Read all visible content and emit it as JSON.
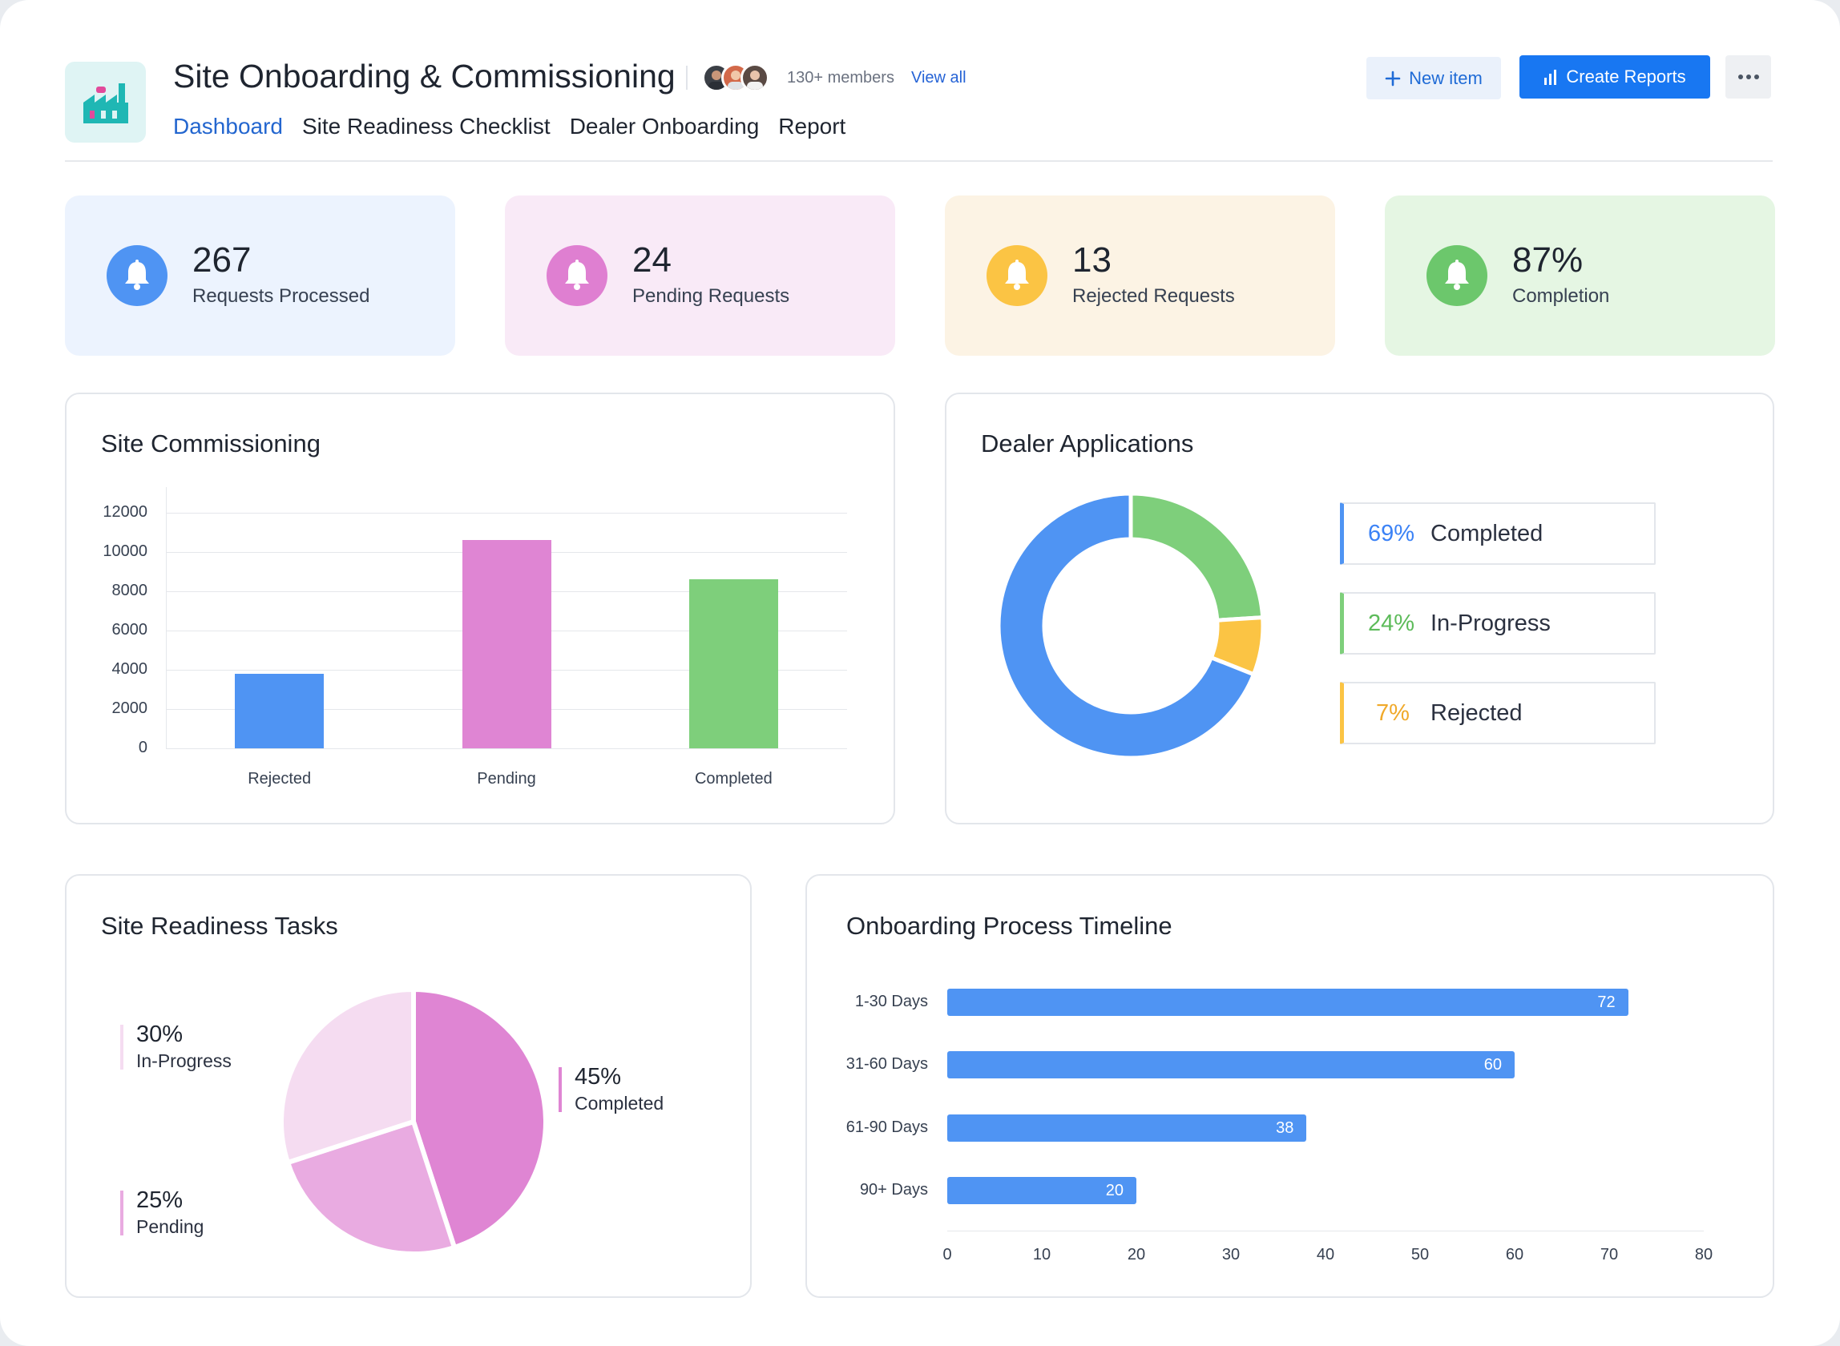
{
  "header": {
    "title": "Site Onboarding & Commissioning",
    "members_text": "130+ members",
    "view_all": "View all",
    "tabs": [
      {
        "label": "Dashboard",
        "active": true
      },
      {
        "label": "Site Readiness Checklist",
        "active": false
      },
      {
        "label": "Dealer Onboarding",
        "active": false
      },
      {
        "label": "Report",
        "active": false
      }
    ],
    "new_item_label": "New item",
    "create_reports_label": "Create Reports"
  },
  "stats": [
    {
      "value": "267",
      "label": "Requests Processed",
      "bg": "#ecf3fe",
      "icon_bg": "#4f94f3"
    },
    {
      "value": "24",
      "label": "Pending Requests",
      "bg": "#f9eaf7",
      "icon_bg": "#df7fd1"
    },
    {
      "value": "13",
      "label": "Rejected Requests",
      "bg": "#fcf3e4",
      "icon_bg": "#fbc444"
    },
    {
      "value": "87%",
      "label": "Completion",
      "bg": "#e5f6e3",
      "icon_bg": "#6cc76c"
    }
  ],
  "site_commissioning": {
    "title": "Site Commissioning",
    "chart_data": {
      "type": "bar",
      "categories": [
        "Rejected",
        "Pending",
        "Completed"
      ],
      "values": [
        3800,
        10600,
        8600
      ],
      "colors": [
        "#4f94f3",
        "#df85d3",
        "#7ecf7b"
      ],
      "yticks": [
        "12000",
        "10000",
        "8000",
        "6000",
        "4000",
        "2000",
        "0"
      ],
      "ylim": [
        0,
        12000
      ],
      "grid": true
    }
  },
  "dealer_applications": {
    "title": "Dealer Applications",
    "chart_data": {
      "type": "pie",
      "variant": "donut",
      "slices": [
        {
          "pct": "69%",
          "name": "Completed",
          "value": 69,
          "color": "#4f94f3"
        },
        {
          "pct": "24%",
          "name": "In-Progress",
          "value": 24,
          "color": "#7ecf7b"
        },
        {
          "pct": "7%",
          "name": "Rejected",
          "value": 7,
          "color": "#fbc444"
        }
      ]
    }
  },
  "site_readiness": {
    "title": "Site Readiness Tasks",
    "chart_data": {
      "type": "pie",
      "slices": [
        {
          "pct": "45%",
          "name": "Completed",
          "value": 45,
          "color": "#df85d3"
        },
        {
          "pct": "25%",
          "name": "Pending",
          "value": 25,
          "color": "#e9abe1"
        },
        {
          "pct": "30%",
          "name": "In-Progress",
          "value": 30,
          "color": "#f5dcf1"
        }
      ]
    }
  },
  "timeline": {
    "title": "Onboarding Process Timeline",
    "chart_data": {
      "type": "bar",
      "orientation": "horizontal",
      "categories": [
        "1-30 Days",
        "31-60 Days",
        "61-90 Days",
        "90+ Days"
      ],
      "values": [
        72,
        60,
        38,
        20
      ],
      "xticks": [
        "0",
        "10",
        "20",
        "30",
        "40",
        "50",
        "60",
        "70",
        "80"
      ],
      "xlim": [
        0,
        80
      ],
      "color": "#4f94f3"
    }
  }
}
